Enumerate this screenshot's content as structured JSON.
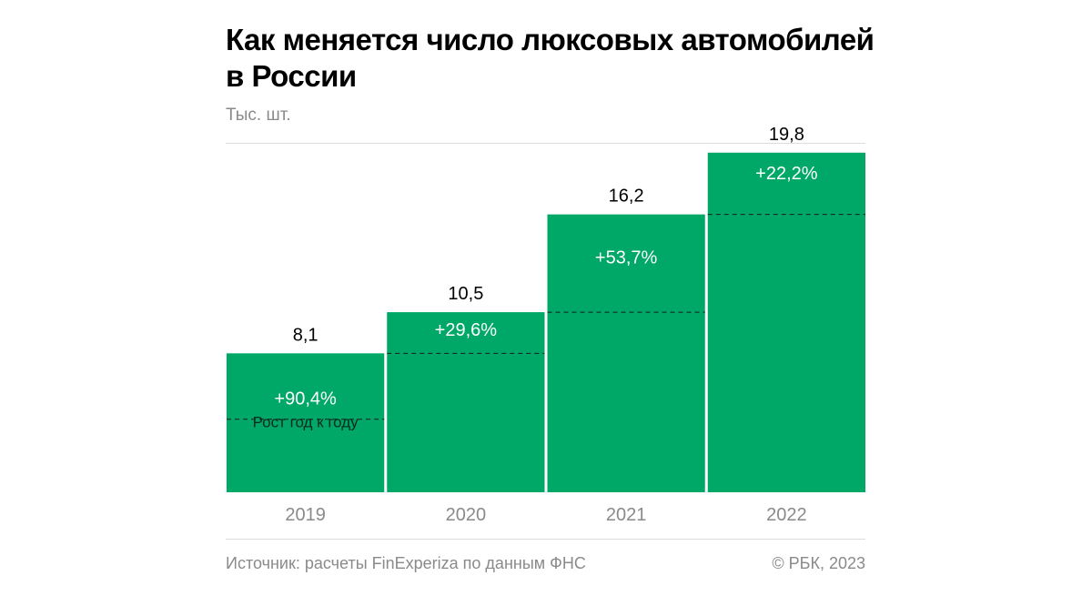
{
  "title_line1": "Как меняется число люксовых автомобилей",
  "title_line2": "в России",
  "unit": "Тыс. шт.",
  "source": "Источник: расчеты FinExperiza по данным ФНС",
  "copyright": "© РБК, 2023",
  "colors": {
    "bar": "#00a867",
    "value_text": "#000000",
    "growth_text": "#ffffff",
    "tick_text": "#8a8a8a",
    "dashed": "#1a1a1a"
  },
  "chart_data": {
    "type": "bar",
    "categories": [
      "2019",
      "2020",
      "2021",
      "2022"
    ],
    "values": [
      8.1,
      10.5,
      16.2,
      19.8
    ],
    "value_labels": [
      "8,1",
      "10,5",
      "16,2",
      "19,8"
    ],
    "growth_labels": [
      "+90,4%",
      "+29,6%",
      "+53,7%",
      "+22,2%"
    ],
    "growth_caption": "Рост год к году",
    "growth_caption_index": 0,
    "ylim": [
      0,
      20.0
    ],
    "grid": false,
    "legend": "none"
  }
}
